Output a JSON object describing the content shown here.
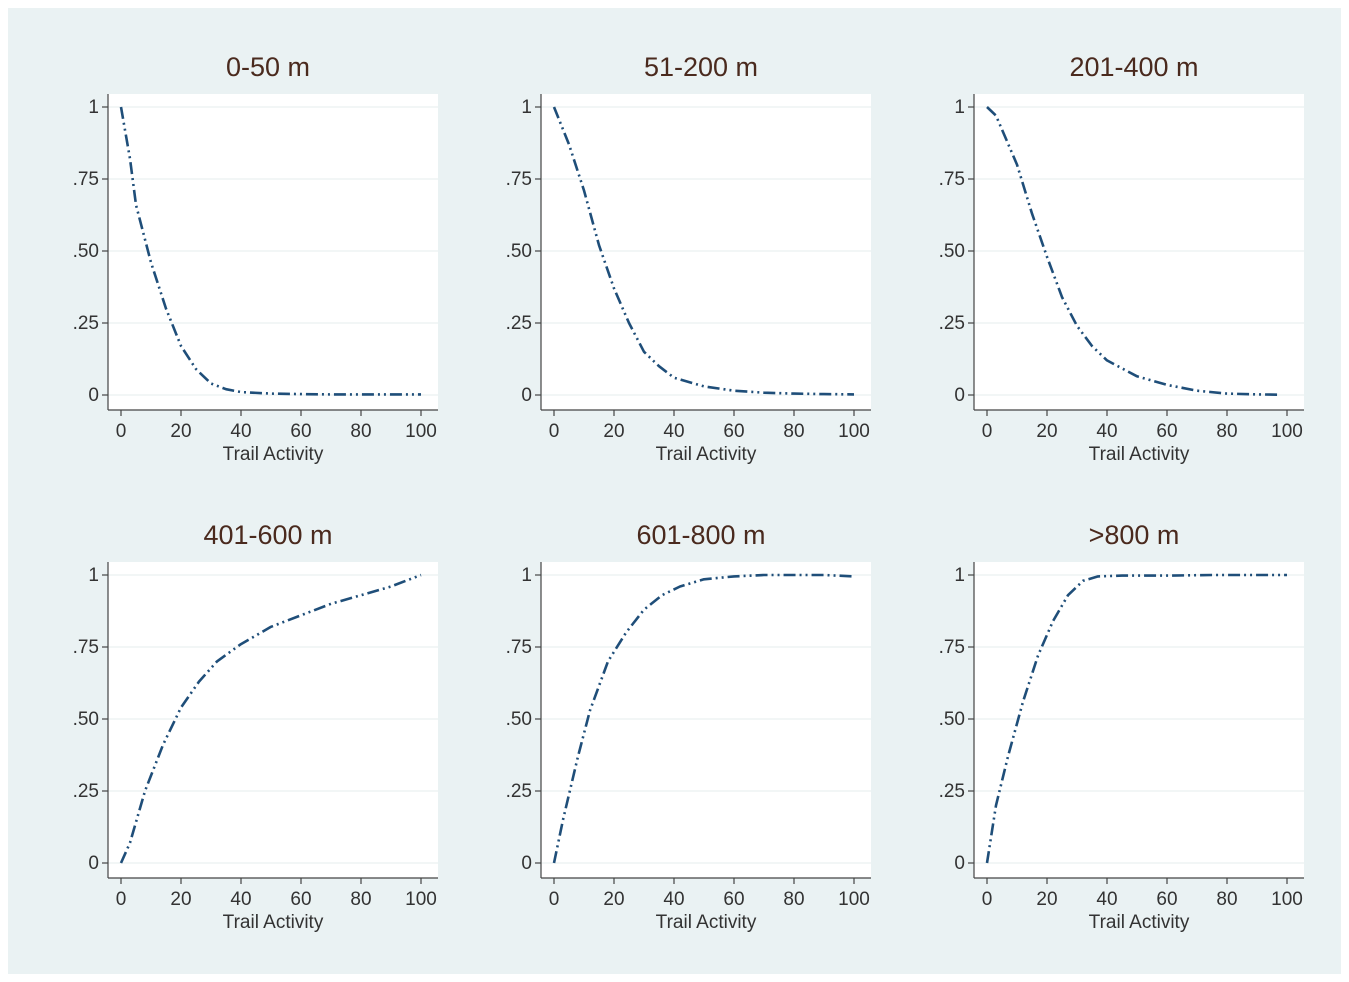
{
  "chart_data": [
    {
      "type": "line",
      "title": "0-50 m",
      "xlabel": "Trail Activity",
      "ylabel": "",
      "xlim": [
        0,
        100
      ],
      "ylim": [
        0,
        1
      ],
      "xticks": [
        "0",
        "20",
        "40",
        "60",
        "80",
        "100"
      ],
      "yticks": [
        "0",
        ".25",
        ".50",
        ".75",
        "1"
      ],
      "grid": true,
      "series": [
        {
          "x": [
            0,
            3,
            5,
            10,
            15,
            20,
            25,
            30,
            35,
            40,
            50,
            60,
            70,
            80,
            90,
            100
          ],
          "y": [
            1,
            0.82,
            0.66,
            0.46,
            0.3,
            0.17,
            0.09,
            0.04,
            0.02,
            0.01,
            0.005,
            0.003,
            0.002,
            0.002,
            0.002,
            0.002
          ]
        }
      ]
    },
    {
      "type": "line",
      "title": "51-200 m",
      "xlabel": "Trail Activity",
      "ylabel": "",
      "xlim": [
        0,
        100
      ],
      "ylim": [
        0,
        1
      ],
      "xticks": [
        "0",
        "20",
        "40",
        "60",
        "80",
        "100"
      ],
      "yticks": [
        "0",
        ".25",
        ".50",
        ".75",
        "1"
      ],
      "grid": true,
      "series": [
        {
          "x": [
            0,
            5,
            10,
            15,
            20,
            25,
            30,
            35,
            40,
            50,
            60,
            70,
            80,
            90,
            100
          ],
          "y": [
            1,
            0.87,
            0.71,
            0.52,
            0.37,
            0.25,
            0.15,
            0.1,
            0.06,
            0.03,
            0.015,
            0.008,
            0.005,
            0.003,
            0.002
          ]
        }
      ]
    },
    {
      "type": "line",
      "title": "201-400 m",
      "xlabel": "Trail Activity",
      "ylabel": "",
      "xlim": [
        0,
        100
      ],
      "ylim": [
        0,
        1
      ],
      "xticks": [
        "0",
        "20",
        "40",
        "60",
        "80",
        "100"
      ],
      "yticks": [
        "0",
        ".25",
        ".50",
        ".75",
        "1"
      ],
      "grid": true,
      "series": [
        {
          "x": [
            0,
            3,
            10,
            15,
            20,
            25,
            30,
            35,
            40,
            50,
            60,
            70,
            80,
            90,
            98
          ],
          "y": [
            1,
            0.97,
            0.8,
            0.63,
            0.48,
            0.34,
            0.24,
            0.17,
            0.12,
            0.065,
            0.035,
            0.015,
            0.005,
            0.002,
            0.001
          ]
        }
      ]
    },
    {
      "type": "line",
      "title": "401-600 m",
      "xlabel": "Trail Activity",
      "ylabel": "",
      "xlim": [
        0,
        100
      ],
      "ylim": [
        0,
        1
      ],
      "xticks": [
        "0",
        "20",
        "40",
        "60",
        "80",
        "100"
      ],
      "yticks": [
        "0",
        ".25",
        ".50",
        ".75",
        "1"
      ],
      "grid": true,
      "series": [
        {
          "x": [
            0,
            3,
            8,
            14,
            20,
            26,
            32,
            40,
            50,
            60,
            70,
            80,
            90,
            100
          ],
          "y": [
            0,
            0.07,
            0.25,
            0.41,
            0.54,
            0.63,
            0.7,
            0.76,
            0.82,
            0.86,
            0.9,
            0.93,
            0.96,
            1
          ]
        }
      ]
    },
    {
      "type": "line",
      "title": "601-800 m",
      "xlabel": "Trail Activity",
      "ylabel": "",
      "xlim": [
        0,
        100
      ],
      "ylim": [
        0,
        1
      ],
      "xticks": [
        "0",
        "20",
        "40",
        "60",
        "80",
        "100"
      ],
      "yticks": [
        "0",
        ".25",
        ".50",
        ".75",
        "1"
      ],
      "grid": true,
      "series": [
        {
          "x": [
            0,
            3,
            8,
            12,
            18,
            24,
            30,
            36,
            42,
            50,
            60,
            70,
            80,
            90,
            100
          ],
          "y": [
            0,
            0.15,
            0.37,
            0.53,
            0.7,
            0.8,
            0.88,
            0.93,
            0.96,
            0.985,
            0.995,
            1,
            1,
            1,
            0.995
          ]
        }
      ]
    },
    {
      "type": "line",
      "title": ">800 m",
      "xlabel": "Trail Activity",
      "ylabel": "",
      "xlim": [
        0,
        100
      ],
      "ylim": [
        0,
        1
      ],
      "xticks": [
        "0",
        "20",
        "40",
        "60",
        "80",
        "100"
      ],
      "yticks": [
        "0",
        ".25",
        ".50",
        ".75",
        "1"
      ],
      "grid": true,
      "series": [
        {
          "x": [
            0,
            3,
            7,
            12,
            17,
            22,
            27,
            32,
            37,
            45,
            60,
            75,
            90,
            100
          ],
          "y": [
            0,
            0.2,
            0.37,
            0.56,
            0.72,
            0.84,
            0.93,
            0.98,
            0.995,
            0.998,
            0.998,
            1,
            1,
            1
          ]
        }
      ]
    }
  ]
}
